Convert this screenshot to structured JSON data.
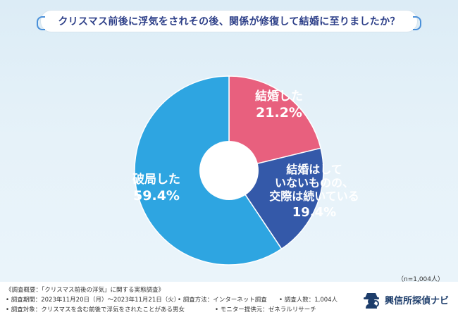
{
  "title": "クリスマス前後に浮気をされその後、関係が修復して結婚に至りましたか？",
  "sample_size": "（n=1,004人）",
  "colors": {
    "married": "#e8607e",
    "not_married": "#3459a9",
    "broke_up": "#2ea5e1",
    "title_text": "#2d3f88"
  },
  "chart_data": {
    "type": "pie",
    "style": "donut",
    "unit": "%",
    "slices": [
      {
        "label_lines": [
          "結婚した"
        ],
        "value": 21.2,
        "value_label": "21.2%",
        "color": "#e8607e"
      },
      {
        "label_lines": [
          "結婚はして",
          "いないものの、",
          "交際は続いている"
        ],
        "value": 19.4,
        "value_label": "19.4%",
        "color": "#3459a9"
      },
      {
        "label_lines": [
          "破局した"
        ],
        "value": 59.4,
        "value_label": "59.4%",
        "color": "#2ea5e1"
      }
    ]
  },
  "footer": {
    "overview": "《調査概要：「クリスマス前後の浮気」に関する実態調査》",
    "period": "• 調査期間：2023年11月20日（月）〜2023年11月21日（火）",
    "method": "• 調査方法：インターネット調査",
    "count": "• 調査人数：1,004人",
    "target": "• 調査対象：クリスマスを含む前後で浮気をされたことがある男女",
    "provider": "• モニター提供元：ゼネラルリサーチ"
  },
  "brand": {
    "name": "興信所探偵ナビ",
    "icon": "detective-icon"
  }
}
